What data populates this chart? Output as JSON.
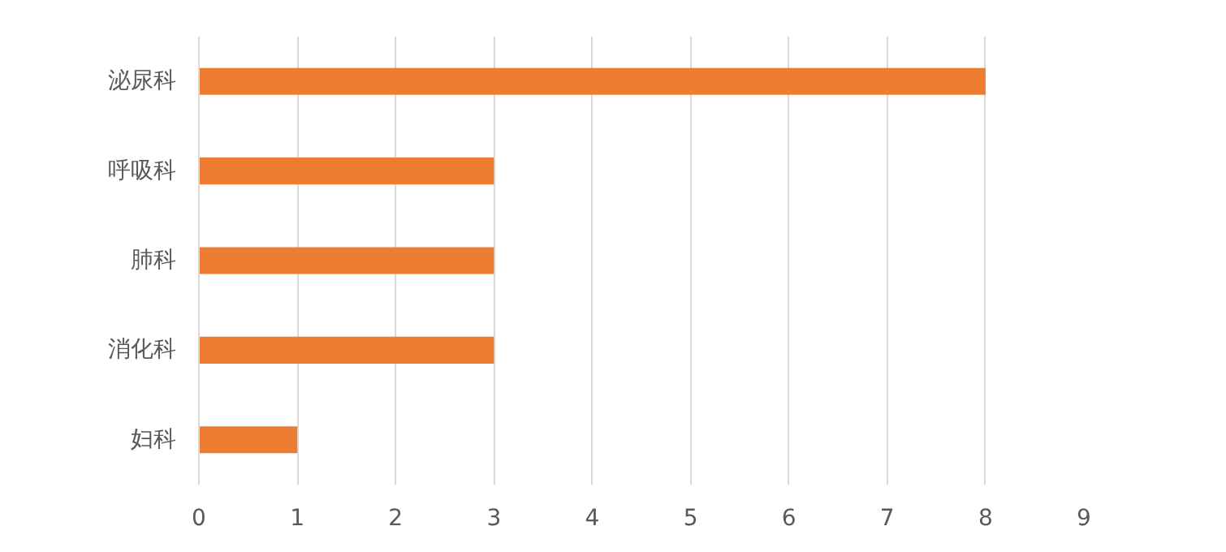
{
  "chart_data": {
    "type": "bar",
    "orientation": "horizontal",
    "categories": [
      "泌尿科",
      "呼吸科",
      "肺科",
      "消化科",
      "妇科"
    ],
    "values": [
      8,
      3,
      3,
      3,
      1
    ],
    "color": "#ed7d31",
    "xlim": [
      0,
      9
    ],
    "xticks": [
      0,
      1,
      2,
      3,
      4,
      5,
      6,
      7,
      8,
      9
    ],
    "grid": "x"
  }
}
